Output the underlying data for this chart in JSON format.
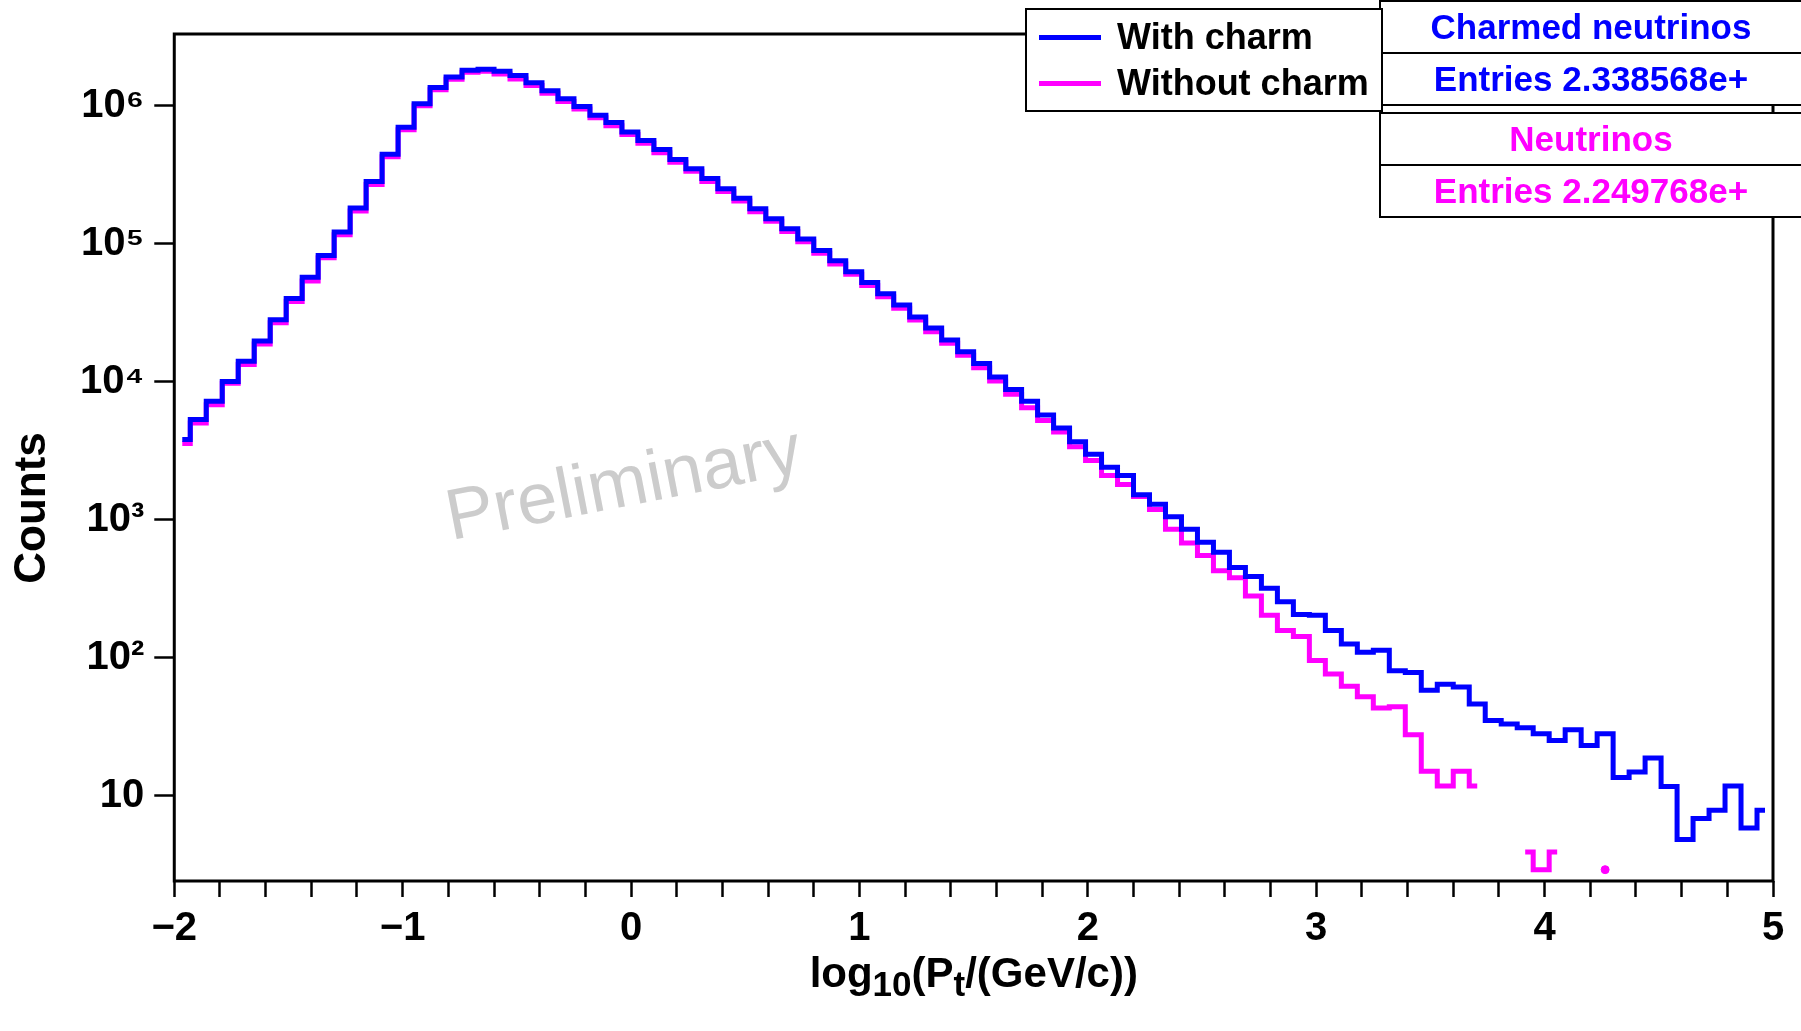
{
  "chart_data": {
    "type": "step",
    "xlabel": "log$_{10}$(P$_{t}$/(GeV/c))",
    "ylabel": "Counts",
    "x": [
      -1.965,
      -1.895,
      -1.825,
      -1.755,
      -1.685,
      -1.615,
      -1.545,
      -1.475,
      -1.405,
      -1.335,
      -1.265,
      -1.195,
      -1.125,
      -1.055,
      -0.985,
      -0.915,
      -0.845,
      -0.775,
      -0.705,
      -0.635,
      -0.565,
      -0.495,
      -0.425,
      -0.355,
      -0.285,
      -0.215,
      -0.145,
      -0.075,
      -0.005,
      0.065,
      0.135,
      0.205,
      0.275,
      0.345,
      0.415,
      0.485,
      0.555,
      0.625,
      0.695,
      0.765,
      0.835,
      0.905,
      0.975,
      1.045,
      1.115,
      1.185,
      1.255,
      1.325,
      1.395,
      1.465,
      1.535,
      1.605,
      1.675,
      1.745,
      1.815,
      1.885,
      1.955,
      2.025,
      2.095,
      2.165,
      2.235,
      2.305,
      2.375,
      2.445,
      2.515,
      2.585,
      2.655,
      2.725,
      2.795,
      2.865,
      2.935,
      3.005,
      3.075,
      3.145,
      3.215,
      3.285,
      3.355,
      3.425,
      3.495,
      3.565,
      3.635,
      3.705,
      3.775,
      3.845,
      3.915,
      3.985,
      4.055,
      4.125,
      4.195,
      4.265,
      4.335,
      4.405,
      4.475,
      4.545,
      4.615,
      4.685,
      4.755,
      4.825,
      4.895,
      4.965
    ],
    "series": [
      {
        "name": "With charm",
        "color": "#0000ff",
        "values": [
          3800,
          5300,
          7200,
          10000,
          14000,
          19700,
          28000,
          40000,
          57000,
          82000,
          121000,
          181000,
          281000,
          443000,
          697000,
          1030000,
          1350000,
          1610000,
          1800000,
          1830000,
          1770000,
          1650000,
          1460000,
          1280000,
          1120000,
          985000,
          852000,
          755000,
          643000,
          557000,
          480000,
          407000,
          349000,
          296000,
          249000,
          213000,
          179000,
          151000,
          128000,
          108000,
          89000,
          75000,
          62500,
          52200,
          43300,
          35800,
          29400,
          24400,
          20000,
          16400,
          13500,
          10800,
          8750,
          7190,
          5710,
          4600,
          3660,
          2970,
          2390,
          2080,
          1510,
          1290,
          1045,
          849,
          684,
          578,
          449,
          387,
          318,
          254,
          205,
          202,
          157,
          125,
          109,
          113,
          80,
          78,
          58,
          64,
          61,
          46,
          35,
          33,
          31,
          28,
          25,
          30,
          23,
          28,
          13.5,
          14.8,
          18.7,
          11.6,
          4.8,
          6.8,
          7.8,
          11.7,
          5.8,
          7.8
        ]
      },
      {
        "name": "Without charm",
        "color": "#ff00ff",
        "values": [
          3550,
          5000,
          6800,
          9700,
          13300,
          18700,
          26700,
          38000,
          53500,
          79000,
          116000,
          172000,
          268000,
          425000,
          667000,
          995000,
          1300000,
          1550000,
          1740000,
          1770000,
          1690000,
          1560000,
          1400000,
          1230000,
          1070000,
          943000,
          817000,
          715000,
          617000,
          534000,
          455000,
          388000,
          334000,
          282000,
          238000,
          203000,
          170000,
          145000,
          122000,
          103000,
          85000,
          71000,
          60000,
          49600,
          41100,
          34000,
          27900,
          22900,
          18900,
          15500,
          12600,
          10100,
          8100,
          6460,
          5220,
          4300,
          3370,
          2680,
          2080,
          1790,
          1470,
          1180,
          849,
          675,
          548,
          425,
          379,
          279,
          202,
          157,
          142,
          95,
          76,
          62,
          52,
          43,
          44,
          27.5,
          15,
          11.7,
          15,
          11.7,
          null,
          null,
          3.9,
          2.9,
          3.9,
          null,
          null,
          2.9,
          null,
          null,
          null,
          null,
          null,
          null,
          null,
          null,
          null,
          null
        ]
      }
    ],
    "xlim": [
      -2,
      5
    ],
    "xticks": [
      {
        "value": -2,
        "label": "−2"
      },
      {
        "value": -1.8,
        "label": null
      },
      {
        "value": -1.6,
        "label": null
      },
      {
        "value": -1.4,
        "label": null
      },
      {
        "value": -1.2,
        "label": null
      },
      {
        "value": -1,
        "label": "−1"
      },
      {
        "value": -0.8,
        "label": null
      },
      {
        "value": -0.6,
        "label": null
      },
      {
        "value": -0.4,
        "label": null
      },
      {
        "value": -0.2,
        "label": null
      },
      0,
      {
        "value": 0.2,
        "label": null
      },
      {
        "value": 0.4,
        "label": null
      },
      {
        "value": 0.6,
        "label": null
      },
      {
        "value": 0.8,
        "label": null
      },
      1,
      {
        "value": 1.2,
        "label": null
      },
      {
        "value": 1.4,
        "label": null
      },
      {
        "value": 1.6,
        "label": null
      },
      {
        "value": 1.8,
        "label": null
      },
      2,
      {
        "value": 2.2,
        "label": null
      },
      {
        "value": 2.4,
        "label": null
      },
      {
        "value": 2.6,
        "label": null
      },
      {
        "value": 2.8,
        "label": null
      },
      3,
      {
        "value": 3.2,
        "label": null
      },
      {
        "value": 3.4,
        "label": null
      },
      {
        "value": 3.6,
        "label": null
      },
      {
        "value": 3.8,
        "label": null
      },
      4,
      {
        "value": 4.2,
        "label": null
      },
      {
        "value": 4.4,
        "label": null
      },
      {
        "value": 4.6,
        "label": null
      },
      {
        "value": 4.8,
        "label": null
      },
      5
    ],
    "ylim": [
      2.4,
      3300000
    ],
    "yticks": [
      10,
      {
        "value": 100,
        "label": "10²"
      },
      {
        "value": 1000,
        "label": "10³"
      },
      {
        "value": 10000,
        "label": "10⁴"
      },
      {
        "value": 100000,
        "label": "10⁵"
      },
      {
        "value": 1000000,
        "label": "10⁶"
      }
    ],
    "log": "y",
    "grid": false,
    "legend": "top right",
    "annotations": [
      "Charmed neutrinos",
      "Entries  2.338568e+",
      "Neutrinos",
      "Entries  2.249768e+",
      "Preliminary"
    ]
  }
}
